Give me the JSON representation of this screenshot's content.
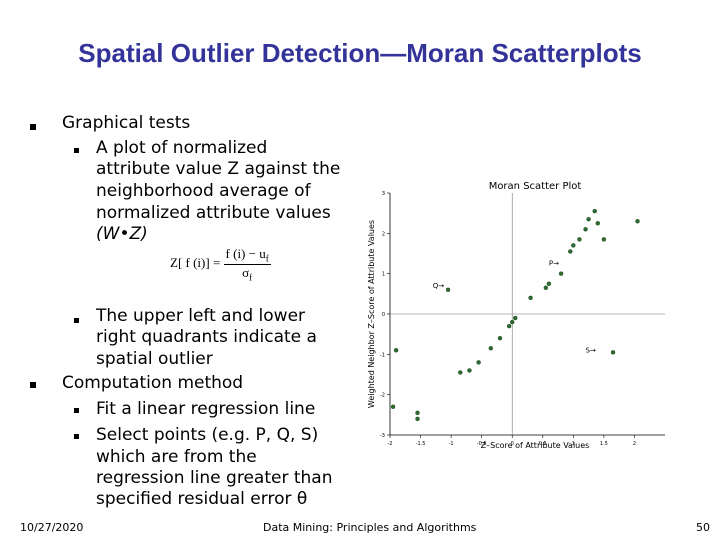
{
  "slide": {
    "title": "Spatial Outlier Detection—Moran Scatterplots",
    "bullets": {
      "b1": "Graphical tests",
      "b1_sub1_l1": "A plot of normalized",
      "b1_sub1_l2": "attribute value Z against the",
      "b1_sub1_l3": "neighborhood average of",
      "b1_sub1_l4": "normalized attribute values",
      "b1_sub1_l5": "(W•Z)",
      "b1_sub2_l1": "The upper left and lower",
      "b1_sub2_l2": "right quadrants indicate a",
      "b1_sub2_l3": "spatial outlier",
      "b2": "Computation method",
      "b2_sub1": "Fit a linear regression line",
      "b2_sub2_l1": "Select points (e.g. P, Q, S)",
      "b2_sub2_l2": "which are from the",
      "b2_sub2_l3": "regression line greater than",
      "b2_sub2_l4": "specified residual error θ"
    },
    "formula": {
      "lhs": "Z[ f (i)] =",
      "numerator": "f (i) − u",
      "num_sub": "f",
      "denominator": "σ",
      "den_sub": "f"
    },
    "footer": {
      "date": "10/27/2020",
      "center": "Data Mining: Principles and Algorithms",
      "page": "50"
    }
  },
  "chart_data": {
    "type": "scatter",
    "title": "Moran Scatter Plot",
    "xlabel": "Z–Score of Attribute Values",
    "ylabel": "Weighted Neighbor Z–Score of Attribute Values",
    "xlim": [
      -2,
      2.5
    ],
    "ylim": [
      -3,
      3
    ],
    "x_ticks": [
      "-2",
      "-1.5",
      "-1",
      "-0.5",
      "0",
      "0.5",
      "1",
      "1.5",
      "2"
    ],
    "y_ticks": [
      "-3",
      "-2",
      "-1",
      "0",
      "1",
      "2",
      "3"
    ],
    "grid": false,
    "point_color": "#2e6b2e",
    "annotations": [
      {
        "label": "P→",
        "x": 0.6,
        "y": 1.2
      },
      {
        "label": "Q→",
        "x": -1.3,
        "y": 0.65
      },
      {
        "label": "S→",
        "x": 1.2,
        "y": -0.95
      }
    ],
    "points": [
      {
        "x": -1.9,
        "y": -0.9
      },
      {
        "x": -1.95,
        "y": -2.3
      },
      {
        "x": -1.55,
        "y": -2.45
      },
      {
        "x": -1.55,
        "y": -2.6
      },
      {
        "x": -1.05,
        "y": 0.6
      },
      {
        "x": -0.85,
        "y": -1.45
      },
      {
        "x": -0.7,
        "y": -1.4
      },
      {
        "x": -0.55,
        "y": -1.2
      },
      {
        "x": -0.35,
        "y": -0.85
      },
      {
        "x": -0.2,
        "y": -0.6
      },
      {
        "x": -0.05,
        "y": -0.3
      },
      {
        "x": 0.0,
        "y": -0.2
      },
      {
        "x": 0.05,
        "y": -0.1
      },
      {
        "x": 0.3,
        "y": 0.4
      },
      {
        "x": 0.55,
        "y": 0.65
      },
      {
        "x": 0.6,
        "y": 0.75
      },
      {
        "x": 0.8,
        "y": 1.0
      },
      {
        "x": 0.95,
        "y": 1.55
      },
      {
        "x": 1.0,
        "y": 1.7
      },
      {
        "x": 1.1,
        "y": 1.85
      },
      {
        "x": 1.2,
        "y": 2.1
      },
      {
        "x": 1.25,
        "y": 2.35
      },
      {
        "x": 1.35,
        "y": 2.55
      },
      {
        "x": 1.4,
        "y": 2.25
      },
      {
        "x": 1.5,
        "y": 1.85
      },
      {
        "x": 1.65,
        "y": -0.95
      },
      {
        "x": 2.05,
        "y": 2.3
      }
    ]
  }
}
